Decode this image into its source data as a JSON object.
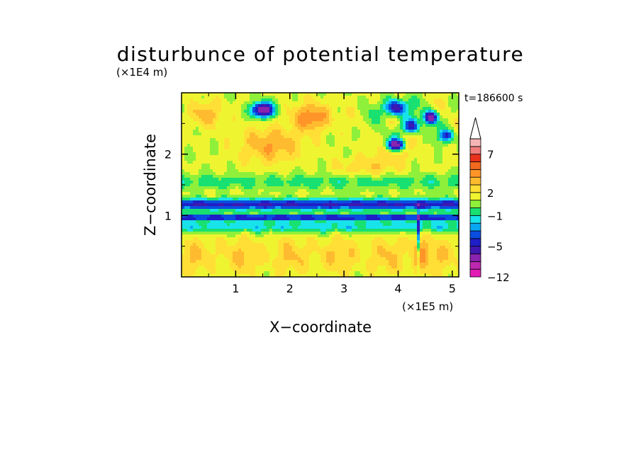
{
  "chart_data": {
    "type": "heatmap",
    "title": "disturbunce of potential temperature",
    "time_label": "t=186600 s",
    "xlabel": "X−coordinate",
    "ylabel": "Z−coordinate",
    "x_unit": "(×1E5 m)",
    "y_unit": "(×1E4 m)",
    "xlim": [
      0,
      5.12
    ],
    "ylim": [
      0,
      3.0
    ],
    "x_ticks": [
      1,
      2,
      3,
      4,
      5
    ],
    "y_ticks": [
      1,
      2
    ],
    "colorbar": {
      "levels": [
        -12,
        -10,
        -8,
        -6,
        -5,
        -4,
        -3,
        -2,
        -1,
        0,
        1,
        2,
        3,
        4,
        5,
        6,
        7,
        8,
        9,
        10
      ],
      "tick_labels": [
        "−12",
        "−5",
        "−1",
        "2",
        "7"
      ],
      "tick_values": [
        -12,
        -5,
        -1,
        2,
        7
      ],
      "colors": [
        "#e21bb4",
        "#bc28ae",
        "#8a23ad",
        "#4018b0",
        "#1f1fc8",
        "#0a4de0",
        "#0aa6f2",
        "#18e3ea",
        "#18e071",
        "#8ef03a",
        "#eef530",
        "#ffdf35",
        "#ffbb2f",
        "#ff9529",
        "#f26a1f",
        "#e8321d",
        "#f07c7c",
        "#f6b6b6",
        "#ffffff"
      ],
      "extend_top": true
    }
  }
}
